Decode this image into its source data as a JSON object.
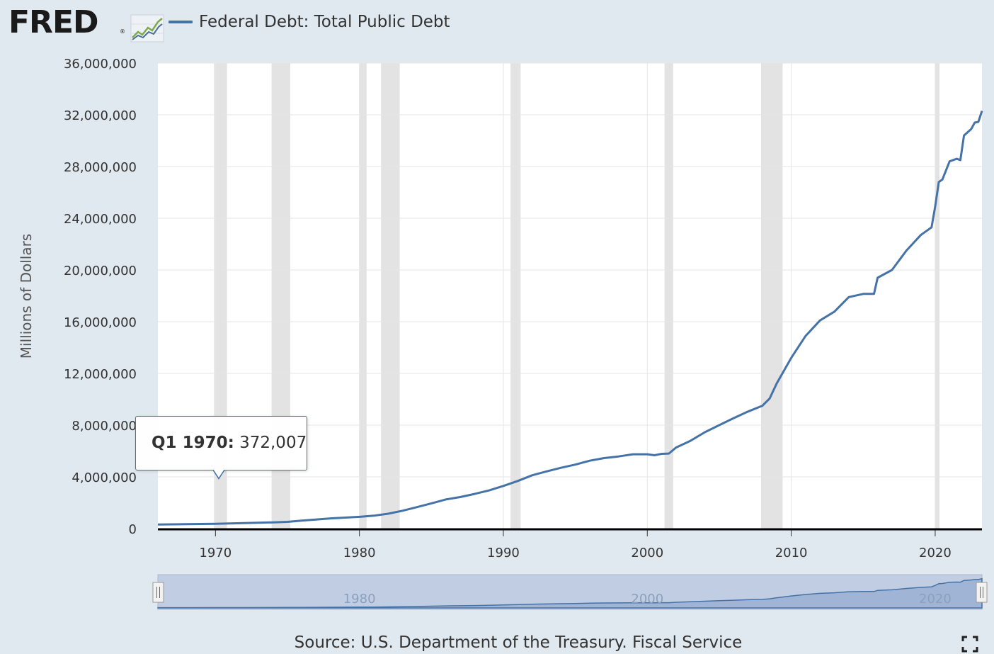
{
  "header": {
    "logo_text": "FRED",
    "logo_reg": "®",
    "logo_icon": "line-chart-icon"
  },
  "chart_data": {
    "type": "line",
    "title": "",
    "xlabel": "",
    "ylabel": "Millions of Dollars",
    "xlim": [
      1966.0,
      2023.25
    ],
    "ylim": [
      0,
      36000000
    ],
    "y_ticks": [
      0,
      4000000,
      8000000,
      12000000,
      16000000,
      20000000,
      24000000,
      28000000,
      32000000,
      36000000
    ],
    "y_tick_labels": [
      "0",
      "4,000,000",
      "8,000,000",
      "12,000,000",
      "16,000,000",
      "20,000,000",
      "24,000,000",
      "28,000,000",
      "32,000,000",
      "36,000,000"
    ],
    "x_ticks": [
      1970,
      1980,
      1990,
      2000,
      2010,
      2020
    ],
    "x_tick_labels": [
      "1970",
      "1980",
      "1990",
      "2000",
      "2010",
      "2020"
    ],
    "grid": true,
    "legend_position": "top-left",
    "recessions": [
      [
        1969.9,
        1970.8
      ],
      [
        1973.9,
        1975.2
      ],
      [
        1980.0,
        1980.5
      ],
      [
        1981.5,
        1982.8
      ],
      [
        1990.5,
        1991.2
      ],
      [
        2001.2,
        2001.8
      ],
      [
        2007.9,
        2009.4
      ],
      [
        2020.0,
        2020.3
      ]
    ],
    "series": [
      {
        "name": "Federal Debt: Total Public Debt",
        "color": "#4572a7",
        "x": [
          1966.0,
          1968.0,
          1970.0,
          1972.0,
          1974.0,
          1975.0,
          1976.0,
          1978.0,
          1980.0,
          1981.0,
          1982.0,
          1983.0,
          1984.0,
          1985.0,
          1986.0,
          1987.0,
          1988.0,
          1989.0,
          1990.0,
          1991.0,
          1992.0,
          1993.0,
          1994.0,
          1995.0,
          1996.0,
          1997.0,
          1998.0,
          1999.0,
          2000.0,
          2000.5,
          2001.0,
          2001.5,
          2002.0,
          2003.0,
          2004.0,
          2005.0,
          2006.0,
          2007.0,
          2008.0,
          2008.5,
          2009.0,
          2010.0,
          2011.0,
          2012.0,
          2013.0,
          2014.0,
          2015.0,
          2015.75,
          2016.0,
          2017.0,
          2018.0,
          2019.0,
          2019.75,
          2020.0,
          2020.25,
          2020.5,
          2021.0,
          2021.5,
          2021.75,
          2022.0,
          2022.5,
          2022.75,
          2023.0,
          2023.25
        ],
        "values": [
          320000,
          340000,
          372007,
          430000,
          480000,
          520000,
          620000,
          790000,
          910000,
          1000000,
          1150000,
          1380000,
          1660000,
          1950000,
          2250000,
          2440000,
          2680000,
          2950000,
          3300000,
          3680000,
          4120000,
          4420000,
          4700000,
          4950000,
          5250000,
          5450000,
          5580000,
          5750000,
          5750000,
          5670000,
          5780000,
          5800000,
          6270000,
          6790000,
          7450000,
          8000000,
          8540000,
          9050000,
          9500000,
          10060000,
          11250000,
          13200000,
          14900000,
          16100000,
          16780000,
          17900000,
          18150000,
          18150000,
          19400000,
          20000000,
          21500000,
          22700000,
          23300000,
          24900000,
          26800000,
          27000000,
          28400000,
          28600000,
          28500000,
          30400000,
          30900000,
          31400000,
          31450000,
          32300000
        ]
      }
    ],
    "navigator": {
      "ticks": [
        1980,
        2000,
        2020
      ],
      "tick_labels": [
        "1980",
        "2000",
        "2020"
      ]
    },
    "tooltip": {
      "date": "Q1 1970:",
      "value": "372,007",
      "x": 1970.0
    }
  },
  "footer": {
    "source": "Source: U.S. Department of the Treasury. Fiscal Service",
    "fullscreen_icon": "fullscreen-icon"
  }
}
